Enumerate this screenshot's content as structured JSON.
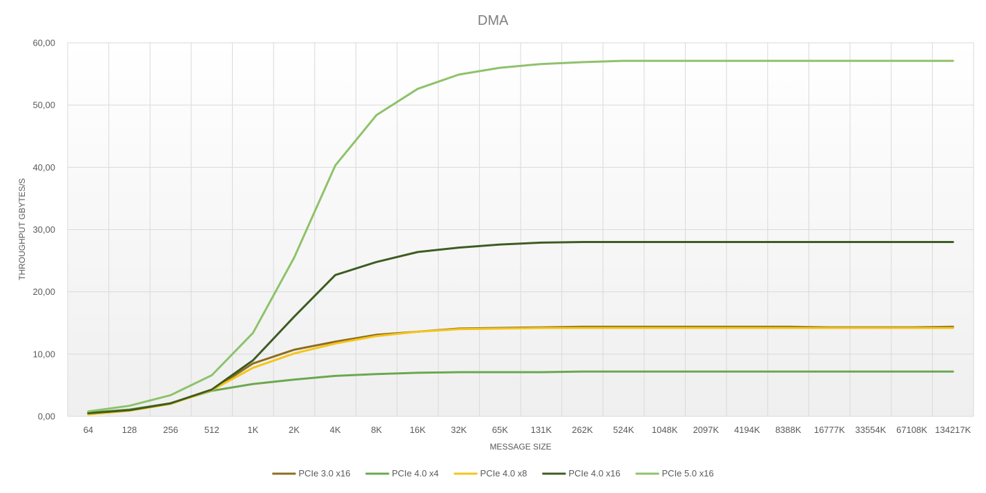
{
  "chart_data": {
    "type": "line",
    "title": "DMA",
    "xlabel": "MESSAGE SIZE",
    "ylabel": "THROUGHPUT GBYTES/S",
    "ylim": [
      0,
      60
    ],
    "yticks": [
      "0,00",
      "10,00",
      "20,00",
      "30,00",
      "40,00",
      "50,00",
      "60,00"
    ],
    "grid": true,
    "legend_position": "bottom",
    "categories": [
      "64",
      "128",
      "256",
      "512",
      "1K",
      "2K",
      "4K",
      "8K",
      "16K",
      "32K",
      "65K",
      "131K",
      "262K",
      "524K",
      "1048K",
      "2097K",
      "4194K",
      "8388K",
      "16777K",
      "33554K",
      "67108K",
      "134217K"
    ],
    "series": [
      {
        "name": "PCIe 3.0 x16",
        "color": "#8c6d1f",
        "values": [
          0.5,
          1.0,
          2.1,
          4.2,
          8.5,
          10.7,
          12.0,
          13.1,
          13.6,
          14.1,
          14.2,
          14.3,
          14.4,
          14.4,
          14.4,
          14.4,
          14.4,
          14.4,
          14.3,
          14.3,
          14.3,
          14.4
        ]
      },
      {
        "name": "PCIe 4.0 x4",
        "color": "#6aa84f",
        "values": [
          0.6,
          1.1,
          2.1,
          4.1,
          5.2,
          5.9,
          6.5,
          6.8,
          7.0,
          7.1,
          7.1,
          7.1,
          7.2,
          7.2,
          7.2,
          7.2,
          7.2,
          7.2,
          7.2,
          7.2,
          7.2,
          7.2
        ]
      },
      {
        "name": "PCIe 4.0 x8",
        "color": "#f5c518",
        "values": [
          0.3,
          0.9,
          2.0,
          4.2,
          7.8,
          10.1,
          11.7,
          12.9,
          13.6,
          14.0,
          14.1,
          14.2,
          14.2,
          14.2,
          14.2,
          14.2,
          14.2,
          14.2,
          14.2,
          14.2,
          14.2,
          14.2
        ]
      },
      {
        "name": "PCIe 4.0 x16",
        "color": "#3d5c22",
        "values": [
          0.5,
          1.0,
          2.1,
          4.3,
          9.0,
          16.0,
          22.7,
          24.8,
          26.4,
          27.1,
          27.6,
          27.9,
          28.0,
          28.0,
          28.0,
          28.0,
          28.0,
          28.0,
          28.0,
          28.0,
          28.0,
          28.0
        ]
      },
      {
        "name": "PCIe 5.0 x16",
        "color": "#8dc26a",
        "values": [
          0.8,
          1.7,
          3.4,
          6.6,
          13.4,
          25.5,
          40.3,
          48.4,
          52.6,
          54.9,
          56.0,
          56.6,
          56.9,
          57.1,
          57.1,
          57.1,
          57.1,
          57.1,
          57.1,
          57.1,
          57.1,
          57.1
        ]
      }
    ]
  }
}
